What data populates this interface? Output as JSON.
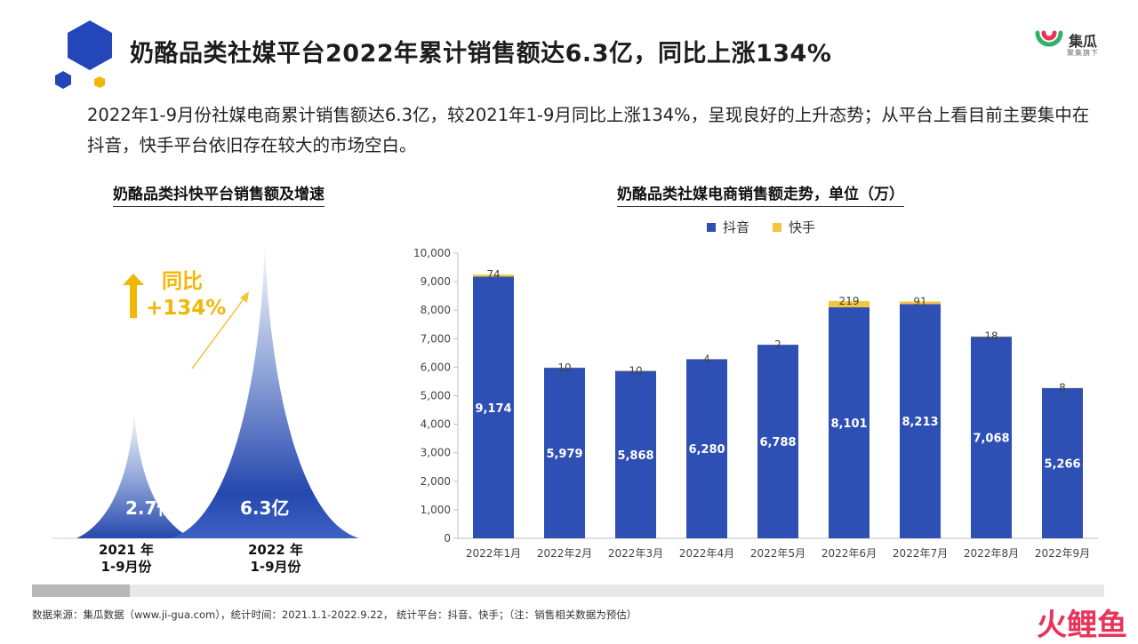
{
  "title": "奶酪品类社媒平台2022年累计销售额达6.3亿，同比上涨134%",
  "intro": "2022年1-9月份社媒电商累计销售额达6.3亿，较2021年1-9月同比上涨134%，呈现良好的上升态势；从平台上看目前主要集中在抖音，快手平台依旧存在较大的市场空白。",
  "brand": {
    "name": "集瓜",
    "sub": "聚集旗下"
  },
  "corner_text": "火鲤鱼",
  "left_panel": {
    "title": "奶酪品类抖快平台销售额及增速",
    "growth_line1": "同比",
    "growth_line2": "+134%",
    "arrow_icon": "up-arrow-icon",
    "periods": [
      {
        "line1": "2021 年",
        "line2": "1-9月份",
        "value_label": "2.7亿"
      },
      {
        "line1": "2022 年",
        "line2": "1-9月份",
        "value_label": "6.3亿"
      }
    ]
  },
  "source": "数据来源：集瓜数据（www.ji-gua.com），统计时间：2021.1.1-2022.9.22，  统计平台：抖音、快手；（注：销售相关数据为预估）",
  "colors": {
    "douyin": "#2e4fb3",
    "kuaishou": "#f2c53d",
    "accent": "#f2b705",
    "brand_blue": "#2347b8"
  },
  "chart_data": [
    {
      "type": "area",
      "title": "奶酪品类抖快平台销售额及增速",
      "categories": [
        "2021 年 1-9月份",
        "2022 年 1-9月份"
      ],
      "values": [
        2.7,
        6.3
      ],
      "annotations": [
        "同比 +134%"
      ]
    },
    {
      "type": "bar",
      "stacked": true,
      "title": "奶酪品类社媒电商销售额走势，单位（万）",
      "categories": [
        "2022年1月",
        "2022年2月",
        "2022年3月",
        "2022年4月",
        "2022年5月",
        "2022年6月",
        "2022年7月",
        "2022年8月",
        "2022年9月"
      ],
      "series": [
        {
          "name": "抖音",
          "values": [
            9174,
            5979,
            5868,
            6280,
            6788,
            8101,
            8213,
            7068,
            5266
          ],
          "labels": [
            "9,174",
            "5,979",
            "5,868",
            "6,280",
            "6,788",
            "8,101",
            "8,213",
            "7,068",
            "5,266"
          ]
        },
        {
          "name": "快手",
          "values": [
            74,
            10,
            10,
            4,
            2,
            219,
            91,
            18,
            8
          ],
          "labels": [
            "74",
            "10",
            "10",
            "4",
            "2",
            "219",
            "91",
            "18",
            "8"
          ]
        }
      ],
      "ylim": [
        0,
        10000
      ],
      "yticks": [
        "0",
        "1,000",
        "2,000",
        "3,000",
        "4,000",
        "5,000",
        "6,000",
        "7,000",
        "8,000",
        "9,000",
        "10,000"
      ],
      "grid": false,
      "legend": "top-center"
    }
  ]
}
